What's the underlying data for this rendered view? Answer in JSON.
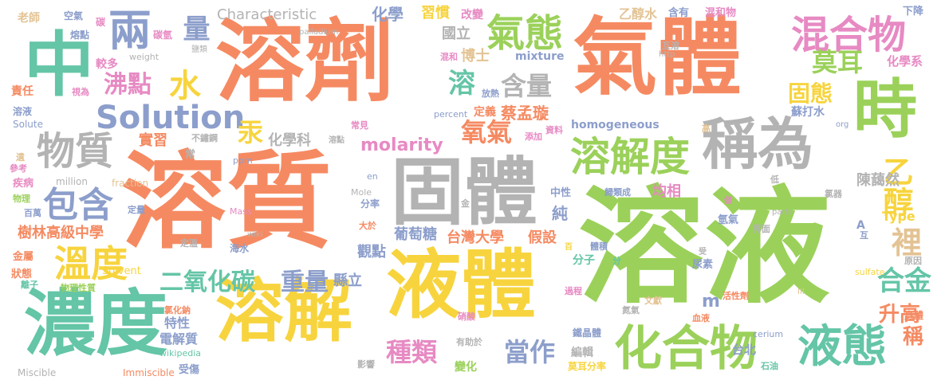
{
  "palette": {
    "orange": "#F58A62",
    "green": "#9BD15A",
    "gray": "#B3B3B3",
    "yellow": "#F7D43E",
    "teal": "#64C5A7",
    "blue": "#8C9ECB",
    "pink": "#E78AC3",
    "tan": "#E3C394"
  },
  "words": [
    {
      "text": "溶液",
      "color": "green"
    },
    {
      "text": "溶質",
      "color": "orange"
    },
    {
      "text": "溶劑",
      "color": "orange"
    },
    {
      "text": "氣體",
      "color": "orange"
    },
    {
      "text": "固體",
      "color": "gray"
    },
    {
      "text": "液體",
      "color": "yellow"
    },
    {
      "text": "中",
      "color": "teal"
    },
    {
      "text": "濃度",
      "color": "teal"
    },
    {
      "text": "溶解",
      "color": "yellow"
    },
    {
      "text": "時",
      "color": "green"
    },
    {
      "text": "稱為",
      "color": "gray"
    },
    {
      "text": "化合物",
      "color": "green"
    },
    {
      "text": "液態",
      "color": "teal"
    },
    {
      "text": "混合物",
      "color": "pink"
    },
    {
      "text": "氣態",
      "color": "green"
    },
    {
      "text": "溶解度",
      "color": "green"
    },
    {
      "text": "兩",
      "color": "blue"
    },
    {
      "text": "物質",
      "color": "gray"
    },
    {
      "text": "Solution",
      "color": "blue"
    },
    {
      "text": "溫度",
      "color": "yellow"
    },
    {
      "text": "包含",
      "color": "blue"
    },
    {
      "text": "乙醇",
      "color": "yellow"
    },
    {
      "text": "水",
      "color": "yellow"
    },
    {
      "text": "量",
      "color": "blue"
    },
    {
      "text": "沸點",
      "color": "pink"
    },
    {
      "text": "二氧化碳",
      "color": "teal"
    },
    {
      "text": "重量",
      "color": "blue"
    },
    {
      "text": "種類",
      "color": "pink"
    },
    {
      "text": "當作",
      "color": "blue"
    },
    {
      "text": "molarity",
      "color": "pink"
    },
    {
      "text": "氧氣",
      "color": "orange"
    },
    {
      "text": "含量",
      "color": "gray"
    },
    {
      "text": "溶",
      "color": "teal"
    },
    {
      "text": "莫耳",
      "color": "green"
    },
    {
      "text": "固態",
      "color": "yellow"
    },
    {
      "text": "合金",
      "color": "teal"
    },
    {
      "text": "裡",
      "color": "tan"
    },
    {
      "text": "升高",
      "color": "orange"
    },
    {
      "text": "稱",
      "color": "orange"
    },
    {
      "text": "Characteristic",
      "color": "gray"
    },
    {
      "text": "化學",
      "color": "blue"
    },
    {
      "text": "習慣",
      "color": "yellow"
    },
    {
      "text": "改變",
      "color": "pink"
    },
    {
      "text": "乙醇水",
      "color": "tan"
    },
    {
      "text": "含有",
      "color": "blue"
    },
    {
      "text": "混和物",
      "color": "pink"
    },
    {
      "text": "下降",
      "color": "blue"
    },
    {
      "text": "國立",
      "color": "gray"
    },
    {
      "text": "博士",
      "color": "tan"
    },
    {
      "text": "mixture",
      "color": "blue"
    },
    {
      "text": "蔡孟璇",
      "color": "orange"
    },
    {
      "text": "定義",
      "color": "orange"
    },
    {
      "text": "化學科",
      "color": "gray"
    },
    {
      "text": "實習",
      "color": "orange"
    },
    {
      "text": "汞",
      "color": "yellow"
    },
    {
      "text": "樹林高級中學",
      "color": "orange"
    },
    {
      "text": "台灣大學",
      "color": "orange"
    },
    {
      "text": "葡萄糖",
      "color": "blue"
    },
    {
      "text": "假設",
      "color": "orange"
    },
    {
      "text": "觀點",
      "color": "blue"
    },
    {
      "text": "陳藹然",
      "color": "gray"
    },
    {
      "text": "均相",
      "color": "pink"
    },
    {
      "text": "homogeneous",
      "color": "blue"
    },
    {
      "text": "純",
      "color": "blue"
    },
    {
      "text": "化學系",
      "color": "pink"
    },
    {
      "text": "蘇打水",
      "color": "blue"
    },
    {
      "text": "m",
      "color": "blue"
    },
    {
      "text": "Type",
      "color": "yellow"
    },
    {
      "text": "特性",
      "color": "blue"
    },
    {
      "text": "電解質",
      "color": "blue"
    },
    {
      "text": "縣立",
      "color": "blue"
    },
    {
      "text": "編輯",
      "color": "gray"
    },
    {
      "text": "台北",
      "color": "blue"
    },
    {
      "text": "分子",
      "color": "teal"
    },
    {
      "text": "老師",
      "color": "tan"
    },
    {
      "text": "空氣",
      "color": "blue"
    },
    {
      "text": "碳",
      "color": "pink"
    },
    {
      "text": "熔點",
      "color": "blue"
    },
    {
      "text": "碳氫",
      "color": "pink"
    },
    {
      "text": "鹽類",
      "color": "gray"
    },
    {
      "text": "palladium",
      "color": "gray"
    },
    {
      "text": "weight",
      "color": "gray"
    },
    {
      "text": "較多",
      "color": "pink"
    },
    {
      "text": "責任",
      "color": "orange"
    },
    {
      "text": "視為",
      "color": "pink"
    },
    {
      "text": "溶液",
      "color": "blue"
    },
    {
      "text": "Solute",
      "color": "blue"
    },
    {
      "text": "不鏽鋼",
      "color": "gray"
    },
    {
      "text": "常",
      "color": "gray"
    },
    {
      "text": "溶點",
      "color": "gray"
    },
    {
      "text": "ppm",
      "color": "blue"
    },
    {
      "text": "million",
      "color": "gray"
    },
    {
      "text": "fraction",
      "color": "tan"
    },
    {
      "text": "定量",
      "color": "blue"
    },
    {
      "text": "Mass",
      "color": "pink"
    },
    {
      "text": "wiki",
      "color": "gray"
    },
    {
      "text": "定溫",
      "color": "gray"
    },
    {
      "text": "海水",
      "color": "blue"
    },
    {
      "text": "大於",
      "color": "orange"
    },
    {
      "text": "Mole",
      "color": "gray"
    },
    {
      "text": "分率",
      "color": "blue"
    },
    {
      "text": "en",
      "color": "blue"
    },
    {
      "text": "金",
      "color": "gray"
    },
    {
      "text": "percent",
      "color": "blue"
    },
    {
      "text": "放熱",
      "color": "blue"
    },
    {
      "text": "資料",
      "color": "pink"
    },
    {
      "text": "添加",
      "color": "pink"
    },
    {
      "text": "常見",
      "color": "pink"
    },
    {
      "text": "遺",
      "color": "tan"
    },
    {
      "text": "參考",
      "color": "pink"
    },
    {
      "text": "疾病",
      "color": "pink"
    },
    {
      "text": "物理",
      "color": "green"
    },
    {
      "text": "百萬",
      "color": "blue"
    },
    {
      "text": "金屬",
      "color": "orange"
    },
    {
      "text": "狀態",
      "color": "orange"
    },
    {
      "text": "離子",
      "color": "teal"
    },
    {
      "text": "物理性質",
      "color": "green"
    },
    {
      "text": "Solvent",
      "color": "yellow"
    },
    {
      "text": "氯化鈉",
      "color": "orange"
    },
    {
      "text": "wikipedia",
      "color": "teal"
    },
    {
      "text": "Miscible",
      "color": "gray"
    },
    {
      "text": "Immiscible",
      "color": "orange"
    },
    {
      "text": "受傷",
      "color": "blue"
    },
    {
      "text": "影響",
      "color": "gray"
    },
    {
      "text": "有助於",
      "color": "gray"
    },
    {
      "text": "硝酸",
      "color": "pink"
    },
    {
      "text": "變化",
      "color": "green"
    },
    {
      "text": "鐵晶體",
      "color": "blue"
    },
    {
      "text": "莫耳分率",
      "color": "yellow"
    },
    {
      "text": "文獻",
      "color": "tan"
    },
    {
      "text": "血液",
      "color": "orange"
    },
    {
      "text": "cerium",
      "color": "blue"
    },
    {
      "text": "石油",
      "color": "teal"
    },
    {
      "text": "身體",
      "color": "orange"
    },
    {
      "text": "過程",
      "color": "pink"
    },
    {
      "text": "氮氣",
      "color": "gray"
    },
    {
      "text": "活性劑",
      "color": "orange"
    },
    {
      "text": "III",
      "color": "tan"
    },
    {
      "text": "原因",
      "color": "gray"
    },
    {
      "text": "sulfate",
      "color": "yellow"
    },
    {
      "text": "尿素",
      "color": "blue"
    },
    {
      "text": "受",
      "color": "gray"
    },
    {
      "text": "分",
      "color": "teal"
    },
    {
      "text": "百",
      "color": "yellow"
    },
    {
      "text": "體積",
      "color": "blue"
    },
    {
      "text": "互",
      "color": "blue"
    },
    {
      "text": "A",
      "color": "blue"
    },
    {
      "text": "氫氣",
      "color": "blue"
    },
    {
      "text": "儲",
      "color": "pink"
    },
    {
      "text": "parts",
      "color": "gray"
    },
    {
      "text": "界面",
      "color": "gray"
    },
    {
      "text": "氯器",
      "color": "gray"
    },
    {
      "text": "低",
      "color": "gray"
    },
    {
      "text": "歸類成",
      "color": "blue"
    },
    {
      "text": "中性",
      "color": "blue"
    },
    {
      "text": "高",
      "color": "tan"
    },
    {
      "text": "org",
      "color": "blue"
    },
    {
      "text": "互溶",
      "color": "gray"
    },
    {
      "text": "http",
      "color": "gray"
    },
    {
      "text": "混和",
      "color": "pink"
    },
    {
      "text": "時",
      "color": "green"
    }
  ]
}
